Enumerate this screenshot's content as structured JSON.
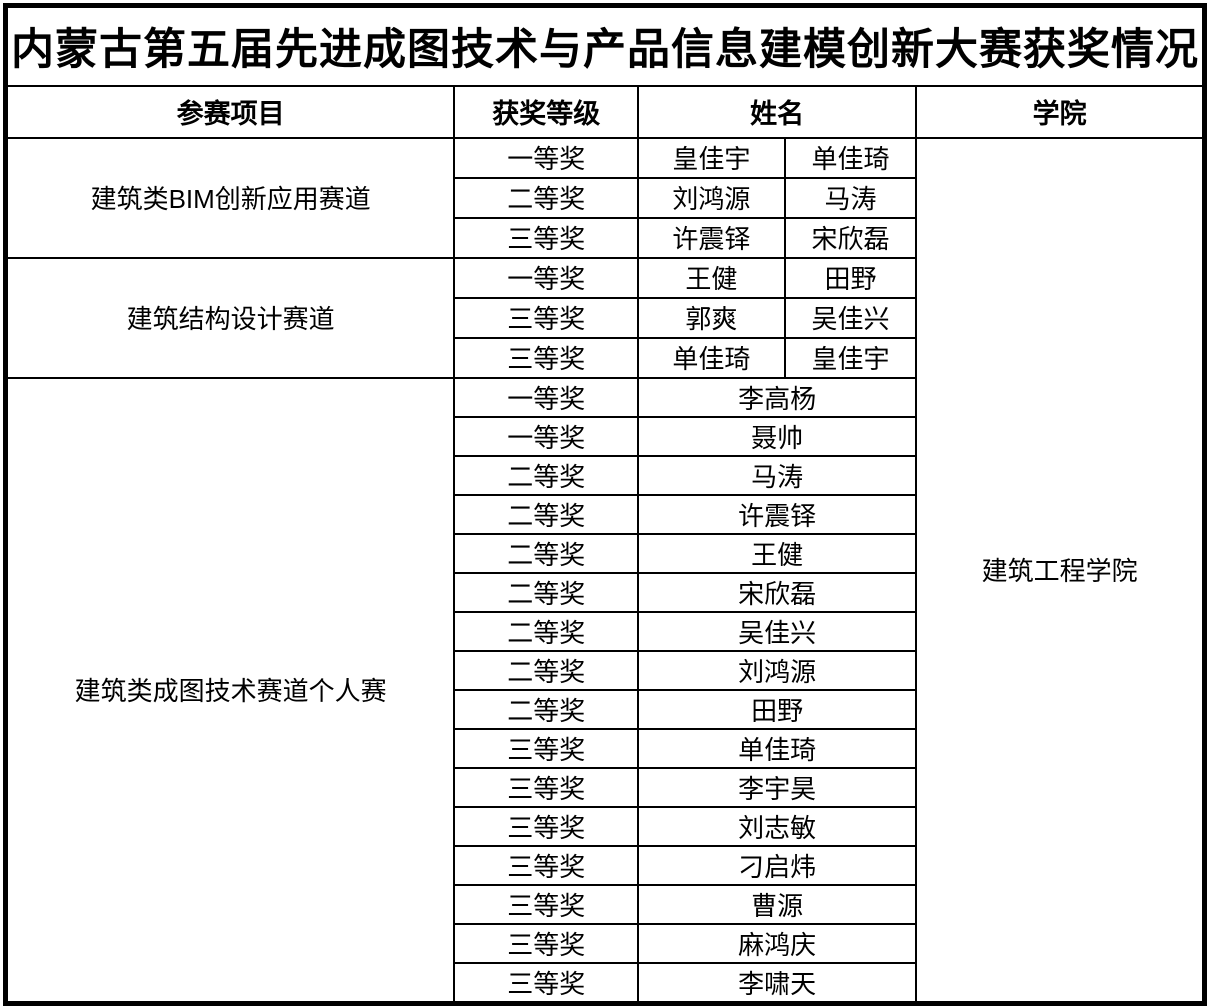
{
  "title": "内蒙古第五届先进成图技术与产品信息建模创新大赛获奖情况",
  "headers": {
    "project": "参赛项目",
    "award": "获奖等级",
    "name": "姓名",
    "college": "学院"
  },
  "college": "建筑工程学院",
  "sections": [
    {
      "project": "建筑类BIM创新应用赛道",
      "rows": [
        {
          "award": "一等奖",
          "names": [
            "皇佳宇",
            "单佳琦"
          ]
        },
        {
          "award": "二等奖",
          "names": [
            "刘鸿源",
            "马涛"
          ]
        },
        {
          "award": "三等奖",
          "names": [
            "许震铎",
            "宋欣磊"
          ]
        }
      ]
    },
    {
      "project": "建筑结构设计赛道",
      "rows": [
        {
          "award": "一等奖",
          "names": [
            "王健",
            "田野"
          ]
        },
        {
          "award": "三等奖",
          "names": [
            "郭爽",
            "吴佳兴"
          ]
        },
        {
          "award": "三等奖",
          "names": [
            "单佳琦",
            "皇佳宇"
          ]
        }
      ]
    },
    {
      "project": "建筑类成图技术赛道个人赛",
      "rows": [
        {
          "award": "一等奖",
          "names": [
            "李高杨"
          ]
        },
        {
          "award": "一等奖",
          "names": [
            "聂帅"
          ]
        },
        {
          "award": "二等奖",
          "names": [
            "马涛"
          ]
        },
        {
          "award": "二等奖",
          "names": [
            "许震铎"
          ]
        },
        {
          "award": "二等奖",
          "names": [
            "王健"
          ]
        },
        {
          "award": "二等奖",
          "names": [
            "宋欣磊"
          ]
        },
        {
          "award": "二等奖",
          "names": [
            "吴佳兴"
          ]
        },
        {
          "award": "二等奖",
          "names": [
            "刘鸿源"
          ]
        },
        {
          "award": "二等奖",
          "names": [
            "田野"
          ]
        },
        {
          "award": "三等奖",
          "names": [
            "单佳琦"
          ]
        },
        {
          "award": "三等奖",
          "names": [
            "李宇昊"
          ]
        },
        {
          "award": "三等奖",
          "names": [
            "刘志敏"
          ]
        },
        {
          "award": "三等奖",
          "names": [
            "刁启炜"
          ]
        },
        {
          "award": "三等奖",
          "names": [
            "曹源"
          ]
        },
        {
          "award": "三等奖",
          "names": [
            "麻鸿庆"
          ]
        },
        {
          "award": "三等奖",
          "names": [
            "李啸天"
          ]
        }
      ]
    }
  ],
  "colors": {
    "border": "#000000",
    "background": "#ffffff",
    "text": "#000000"
  }
}
